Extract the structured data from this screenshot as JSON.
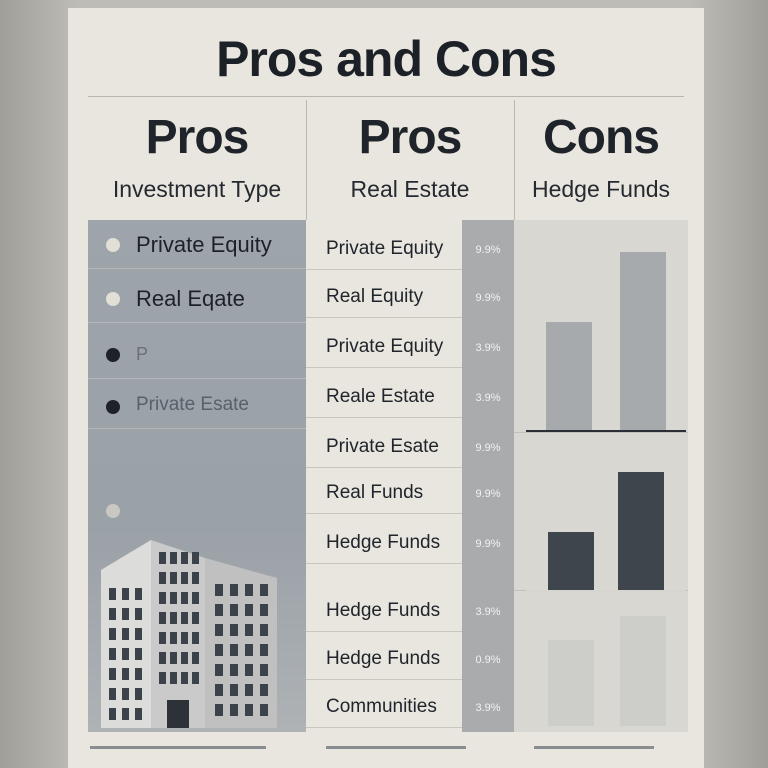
{
  "title": "Pros and Cons",
  "columns": [
    {
      "heading": "Pros",
      "subheading": "Investment Type"
    },
    {
      "heading": "Pros",
      "subheading": "Real Estate"
    },
    {
      "heading": "Cons",
      "subheading": "Hedge Funds"
    }
  ],
  "left_items": [
    {
      "label": "Private Equity",
      "dot": "#e2dfd6"
    },
    {
      "label": "Real Eqate",
      "dot": "#e2dfd6"
    },
    {
      "label": "P",
      "dot": "#1e2228"
    },
    {
      "label": "Private Esate",
      "dot": "#1e2228"
    },
    {
      "label": "",
      "dot": "#c8c7c2"
    }
  ],
  "middle_items": [
    {
      "label": "Private Equity",
      "pct": "9.9%"
    },
    {
      "label": "Real Equity",
      "pct": "9.9%"
    },
    {
      "label": "Private Equity",
      "pct": "3.9%"
    },
    {
      "label": "Reale Estate",
      "pct": "3.9%"
    },
    {
      "label": "Private Esate",
      "pct": "9.9%"
    },
    {
      "label": "Real Funds",
      "pct": "9.9%"
    },
    {
      "label": "Hedge Funds",
      "pct": "9.9%"
    },
    {
      "label": "Hedge Funds",
      "pct": "3.9%"
    },
    {
      "label": "Hedge Funds",
      "pct": "0.9%"
    },
    {
      "label": "Communities",
      "pct": "3.9%"
    }
  ],
  "colors": {
    "bar_light": "#a7aaac",
    "bar_dark": "#3e454c",
    "bar_pale": "#cdcdca"
  }
}
